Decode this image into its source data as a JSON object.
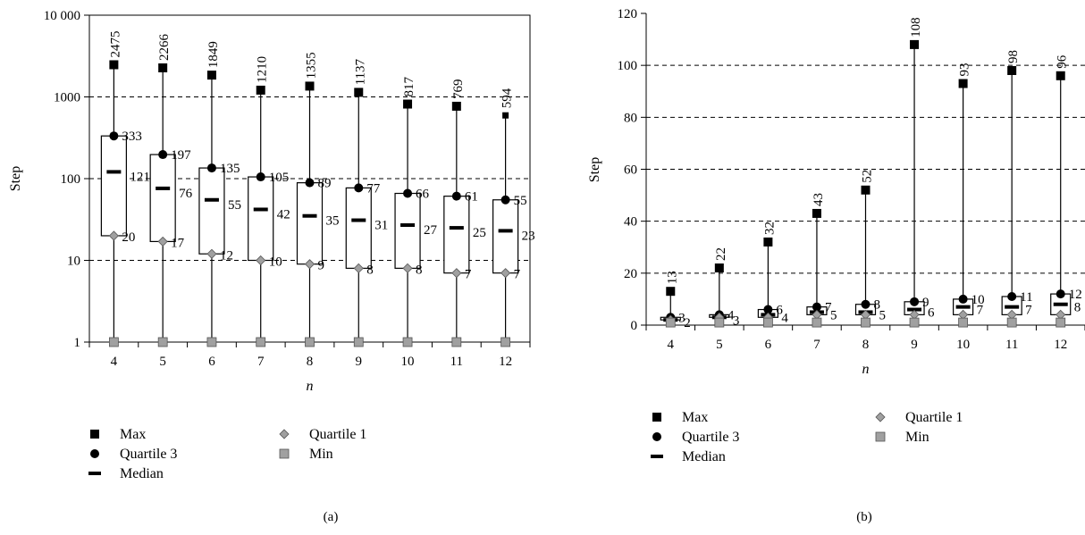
{
  "legend_labels": {
    "max": "Max",
    "q3": "Quartile 3",
    "median": "Median",
    "q1": "Quartile 1",
    "min": "Min"
  },
  "colors": {
    "max": "#000000",
    "q3": "#000000",
    "median": "#000000",
    "q1": "#909090",
    "min": "#909090"
  },
  "chart_data": [
    {
      "panel_label": "(a)",
      "type": "box",
      "scale": "log",
      "xlabel": "n",
      "ylabel": "Step",
      "categories": [
        "4",
        "5",
        "6",
        "7",
        "8",
        "9",
        "10",
        "11",
        "12"
      ],
      "y_ticks": [
        1,
        10,
        100,
        1000,
        10000
      ],
      "y_tick_labels": [
        "1",
        "10",
        "100",
        "1000",
        "10 000"
      ],
      "ylim": [
        1,
        10000
      ],
      "gridlines": [
        10,
        100,
        1000
      ],
      "max": [
        2475,
        2266,
        1849,
        1210,
        1355,
        1137,
        817,
        769,
        594
      ],
      "q3": [
        333,
        197,
        135,
        105,
        89,
        77,
        66,
        61,
        55
      ],
      "median": [
        121,
        76,
        55,
        42,
        35,
        31,
        27,
        25,
        23
      ],
      "q1": [
        20,
        17,
        12,
        10,
        9,
        8,
        8,
        7,
        7
      ],
      "min": [
        1,
        1,
        1,
        1,
        1,
        1,
        1,
        1,
        1
      ]
    },
    {
      "panel_label": "(b)",
      "type": "box",
      "scale": "linear",
      "xlabel": "n",
      "ylabel": "Step",
      "categories": [
        "4",
        "5",
        "6",
        "7",
        "8",
        "9",
        "10",
        "11",
        "12"
      ],
      "y_ticks": [
        0,
        20,
        40,
        60,
        80,
        100,
        120
      ],
      "y_tick_labels": [
        "0",
        "20",
        "40",
        "60",
        "80",
        "100",
        "120"
      ],
      "ylim": [
        0,
        120
      ],
      "gridlines": [
        20,
        40,
        60,
        80,
        100
      ],
      "max": [
        13,
        22,
        32,
        43,
        52,
        108,
        93,
        98,
        96
      ],
      "q3": [
        3,
        4,
        6,
        7,
        8,
        9,
        10,
        11,
        12
      ],
      "median": [
        2,
        3,
        4,
        5,
        5,
        6,
        7,
        7,
        8
      ],
      "q1": [
        2,
        3,
        3,
        4,
        4,
        4,
        4,
        4,
        4
      ],
      "min": [
        1,
        1,
        1,
        1,
        1,
        1,
        1,
        1,
        1
      ]
    }
  ]
}
